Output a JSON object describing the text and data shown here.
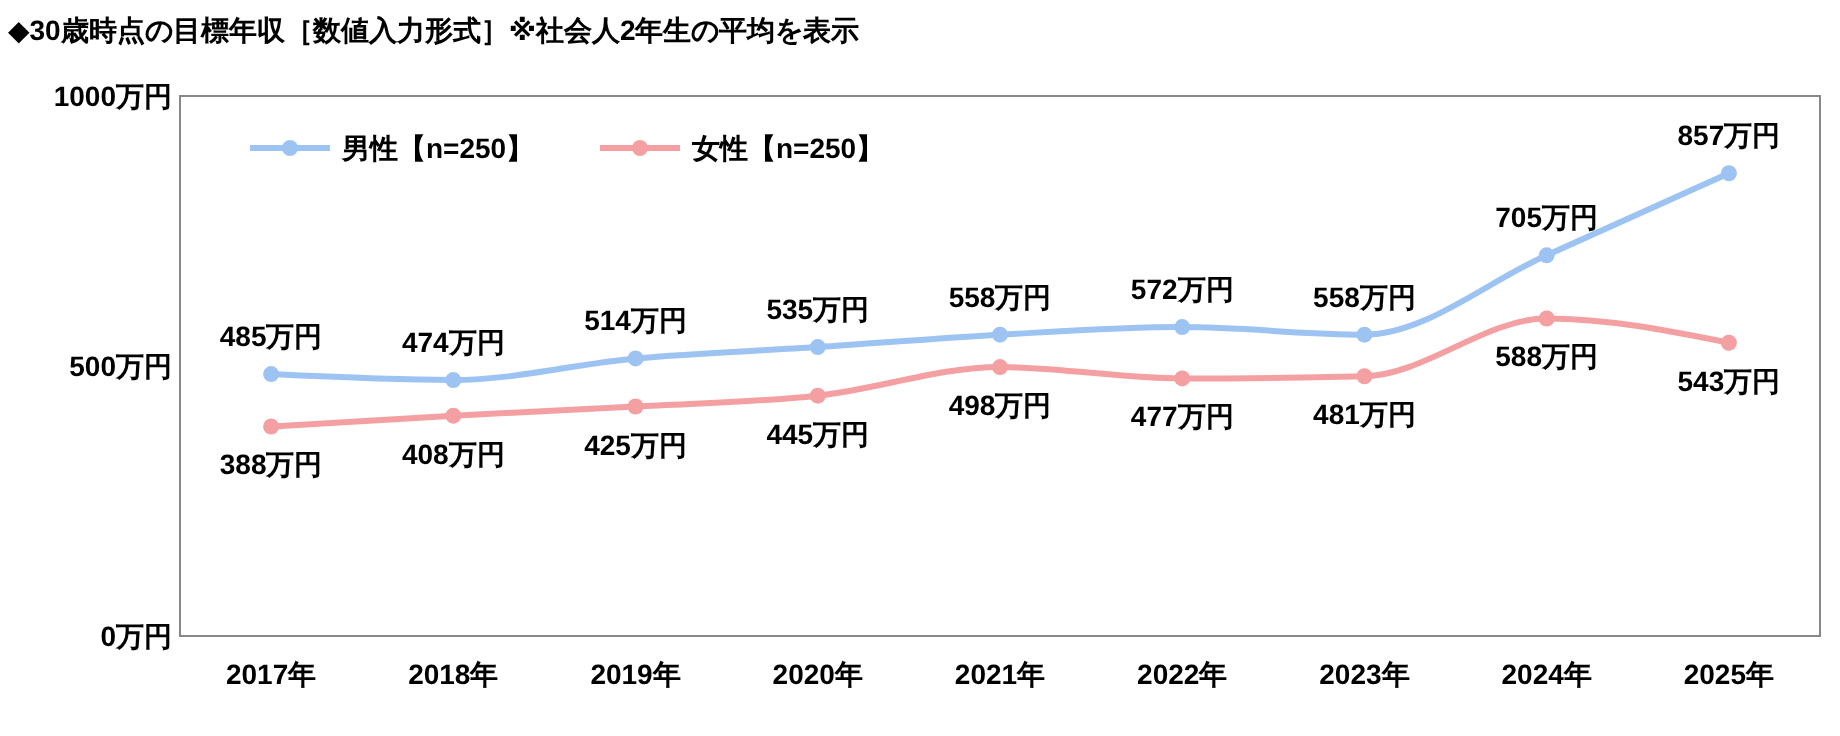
{
  "chart_data": {
    "type": "line",
    "title": "◆30歳時点の目標年収［数値入力形式］※社会人2年生の平均を表示",
    "categories": [
      "2017年",
      "2018年",
      "2019年",
      "2020年",
      "2021年",
      "2022年",
      "2023年",
      "2024年",
      "2025年"
    ],
    "series": [
      {
        "name": "男性【n=250】",
        "color": "#9dc3f2",
        "values": [
          485,
          474,
          514,
          535,
          558,
          572,
          558,
          705,
          857
        ],
        "value_labels": [
          "485万円",
          "474万円",
          "514万円",
          "535万円",
          "558万円",
          "572万円",
          "558万円",
          "705万円",
          "857万円"
        ]
      },
      {
        "name": "女性【n=250】",
        "color": "#f4a0a2",
        "values": [
          388,
          408,
          425,
          445,
          498,
          477,
          481,
          588,
          543
        ],
        "value_labels": [
          "388万円",
          "408万円",
          "425万円",
          "445万円",
          "498万円",
          "477万円",
          "481万円",
          "588万円",
          "543万円"
        ]
      }
    ],
    "ylim": [
      0,
      1000
    ],
    "yticks": [
      {
        "value": 0,
        "label": "0万円"
      },
      {
        "value": 500,
        "label": "500万円"
      },
      {
        "value": 1000,
        "label": "1000万円"
      }
    ],
    "grid": false,
    "legend": "top left",
    "marker": "circle",
    "line_style": "solid"
  }
}
